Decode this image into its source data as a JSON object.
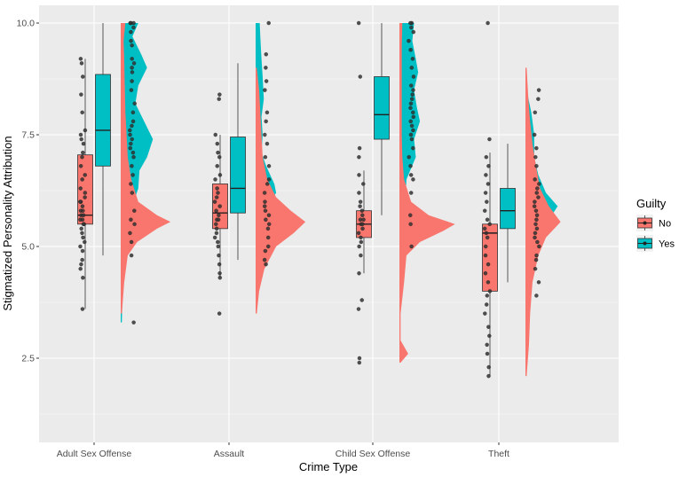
{
  "chart_data": {
    "type": "raincloud",
    "xlabel": "Crime Type",
    "ylabel": "Stigmatized Personality Attribution",
    "ylim": [
      1.0,
      10.3
    ],
    "y_ticks": [
      2.5,
      5.0,
      7.5,
      10.0
    ],
    "y_tick_labels": [
      "2.5",
      "5.0",
      "7.5",
      "10.0"
    ],
    "categories": [
      "Adult Sex Offense",
      "Assault",
      "Child Sex Offense",
      "Theft"
    ],
    "legend": {
      "title": "Guilty",
      "entries": [
        "No",
        "Yes"
      ],
      "placement": "right"
    },
    "colors": {
      "No": "#F8766D",
      "Yes": "#00BFC4",
      "panel": "#EBEBEB",
      "grid": "#FFFFFF",
      "points": "#333333"
    },
    "boxplots": [
      {
        "category": "Adult Sex Offense",
        "group": "No",
        "min": 3.6,
        "q1": 5.5,
        "median": 5.7,
        "q3": 7.05,
        "max": 9.2
      },
      {
        "category": "Adult Sex Offense",
        "group": "Yes",
        "min": 4.8,
        "q1": 6.8,
        "median": 7.6,
        "q3": 8.85,
        "max": 10.0
      },
      {
        "category": "Assault",
        "group": "No",
        "min": 4.3,
        "q1": 5.4,
        "median": 5.75,
        "q3": 6.4,
        "max": 7.5
      },
      {
        "category": "Assault",
        "group": "Yes",
        "min": 4.7,
        "q1": 5.75,
        "median": 6.3,
        "q3": 7.45,
        "max": 9.1
      },
      {
        "category": "Child Sex Offense",
        "group": "No",
        "min": 4.4,
        "q1": 5.2,
        "median": 5.5,
        "q3": 5.8,
        "max": 6.7
      },
      {
        "category": "Child Sex Offense",
        "group": "Yes",
        "min": 5.7,
        "q1": 7.4,
        "median": 7.95,
        "q3": 8.8,
        "max": 10.0
      },
      {
        "category": "Theft",
        "group": "No",
        "min": 2.1,
        "q1": 4.0,
        "median": 5.3,
        "q3": 5.5,
        "max": 7.1
      },
      {
        "category": "Theft",
        "group": "Yes",
        "min": 4.2,
        "q1": 5.4,
        "median": 5.8,
        "q3": 6.3,
        "max": 7.3
      }
    ],
    "densities": [
      {
        "category": "Adult Sex Offense",
        "group": "Yes",
        "profile": [
          [
            3.3,
            0.02
          ],
          [
            4.0,
            0.03
          ],
          [
            4.8,
            0.05
          ],
          [
            5.5,
            0.12
          ],
          [
            6.0,
            0.22
          ],
          [
            6.3,
            0.3
          ],
          [
            6.7,
            0.32
          ],
          [
            7.0,
            0.45
          ],
          [
            7.4,
            0.55
          ],
          [
            7.8,
            0.4
          ],
          [
            8.2,
            0.25
          ],
          [
            8.6,
            0.3
          ],
          [
            9.0,
            0.45
          ],
          [
            9.3,
            0.35
          ],
          [
            9.7,
            0.2
          ],
          [
            10.0,
            0.3
          ]
        ]
      },
      {
        "category": "Adult Sex Offense",
        "group": "No",
        "profile": [
          [
            3.5,
            0.02
          ],
          [
            4.2,
            0.06
          ],
          [
            4.8,
            0.12
          ],
          [
            5.1,
            0.28
          ],
          [
            5.4,
            0.62
          ],
          [
            5.55,
            0.85
          ],
          [
            5.7,
            0.62
          ],
          [
            6.0,
            0.3
          ],
          [
            6.5,
            0.18
          ],
          [
            7.0,
            0.12
          ],
          [
            7.5,
            0.1
          ],
          [
            8.0,
            0.08
          ],
          [
            8.6,
            0.07
          ],
          [
            9.2,
            0.06
          ],
          [
            9.6,
            0.05
          ],
          [
            10.0,
            0.08
          ]
        ]
      },
      {
        "category": "Assault",
        "group": "Yes",
        "profile": [
          [
            5.5,
            0.02
          ],
          [
            5.8,
            0.12
          ],
          [
            6.0,
            0.25
          ],
          [
            6.2,
            0.35
          ],
          [
            6.4,
            0.32
          ],
          [
            6.8,
            0.18
          ],
          [
            7.1,
            0.1
          ],
          [
            7.5,
            0.12
          ],
          [
            7.9,
            0.1
          ],
          [
            8.3,
            0.14
          ],
          [
            8.8,
            0.12
          ],
          [
            9.2,
            0.1
          ],
          [
            9.7,
            0.08
          ],
          [
            10.0,
            0.07
          ]
        ]
      },
      {
        "category": "Assault",
        "group": "No",
        "profile": [
          [
            3.5,
            0.02
          ],
          [
            4.0,
            0.06
          ],
          [
            4.5,
            0.15
          ],
          [
            5.0,
            0.35
          ],
          [
            5.3,
            0.65
          ],
          [
            5.55,
            0.85
          ],
          [
            5.8,
            0.6
          ],
          [
            6.1,
            0.35
          ],
          [
            6.5,
            0.2
          ],
          [
            7.0,
            0.12
          ],
          [
            7.5,
            0.1
          ],
          [
            8.0,
            0.08
          ],
          [
            8.5,
            0.06
          ],
          [
            9.0,
            0.02
          ]
        ]
      },
      {
        "category": "Child Sex Offense",
        "group": "Yes",
        "profile": [
          [
            5.0,
            0.02
          ],
          [
            5.5,
            0.05
          ],
          [
            6.0,
            0.1
          ],
          [
            6.5,
            0.12
          ],
          [
            7.0,
            0.28
          ],
          [
            7.4,
            0.25
          ],
          [
            7.8,
            0.35
          ],
          [
            8.1,
            0.3
          ],
          [
            8.5,
            0.25
          ],
          [
            8.9,
            0.32
          ],
          [
            9.2,
            0.28
          ],
          [
            9.6,
            0.22
          ],
          [
            10.0,
            0.25
          ]
        ]
      },
      {
        "category": "Child Sex Offense",
        "group": "No",
        "profile": [
          [
            2.4,
            0.02
          ],
          [
            2.6,
            0.15
          ],
          [
            2.9,
            0.02
          ],
          [
            3.5,
            0.02
          ],
          [
            4.2,
            0.08
          ],
          [
            4.8,
            0.12
          ],
          [
            5.1,
            0.35
          ],
          [
            5.35,
            0.75
          ],
          [
            5.5,
            0.95
          ],
          [
            5.7,
            0.5
          ],
          [
            6.0,
            0.2
          ],
          [
            6.5,
            0.08
          ],
          [
            7.0,
            0.05
          ],
          [
            7.5,
            0.04
          ],
          [
            8.5,
            0.04
          ],
          [
            9.5,
            0.04
          ],
          [
            10.0,
            0.05
          ]
        ]
      },
      {
        "category": "Theft",
        "group": "Yes",
        "profile": [
          [
            4.6,
            0.02
          ],
          [
            4.9,
            0.1
          ],
          [
            5.2,
            0.2
          ],
          [
            5.6,
            0.4
          ],
          [
            5.9,
            0.55
          ],
          [
            6.2,
            0.35
          ],
          [
            6.6,
            0.22
          ],
          [
            7.0,
            0.15
          ],
          [
            7.5,
            0.15
          ],
          [
            8.0,
            0.1
          ],
          [
            8.5,
            0.02
          ]
        ]
      },
      {
        "category": "Theft",
        "group": "No",
        "profile": [
          [
            2.1,
            0.02
          ],
          [
            2.8,
            0.06
          ],
          [
            3.5,
            0.08
          ],
          [
            4.2,
            0.12
          ],
          [
            4.8,
            0.22
          ],
          [
            5.2,
            0.35
          ],
          [
            5.55,
            0.6
          ],
          [
            5.9,
            0.4
          ],
          [
            6.3,
            0.25
          ],
          [
            6.8,
            0.18
          ],
          [
            7.3,
            0.12
          ],
          [
            7.8,
            0.08
          ],
          [
            8.3,
            0.05
          ],
          [
            9.0,
            0.02
          ]
        ]
      }
    ],
    "points": [
      {
        "category": "Adult Sex Offense",
        "group": "No",
        "values": [
          3.6,
          4.3,
          4.5,
          4.6,
          4.7,
          4.9,
          5.0,
          5.1,
          5.2,
          5.3,
          5.4,
          5.5,
          5.5,
          5.6,
          5.6,
          5.7,
          5.7,
          5.8,
          5.8,
          5.9,
          6.0,
          6.0,
          6.1,
          6.2,
          6.3,
          6.5,
          6.6,
          6.8,
          7.0,
          7.1,
          7.3,
          7.4,
          7.5,
          7.6,
          8.0,
          8.4,
          8.8,
          9.1,
          9.2
        ]
      },
      {
        "category": "Adult Sex Offense",
        "group": "Yes",
        "values": [
          3.3,
          4.8,
          5.1,
          5.3,
          5.5,
          5.6,
          5.8,
          6.2,
          6.4,
          6.6,
          6.8,
          7.0,
          7.1,
          7.2,
          7.3,
          7.4,
          7.5,
          7.6,
          7.7,
          7.8,
          8.0,
          8.2,
          8.5,
          8.7,
          8.9,
          9.0,
          9.1,
          9.2,
          9.5,
          9.6,
          9.8,
          9.9,
          10.0,
          10.0,
          10.0
        ]
      },
      {
        "category": "Assault",
        "group": "No",
        "values": [
          3.5,
          4.3,
          4.4,
          4.6,
          4.8,
          5.0,
          5.1,
          5.2,
          5.3,
          5.4,
          5.5,
          5.6,
          5.6,
          5.7,
          5.8,
          5.9,
          6.0,
          6.1,
          6.2,
          6.3,
          6.5,
          6.6,
          6.8,
          7.0,
          7.1,
          7.3,
          7.5,
          8.3,
          8.4
        ]
      },
      {
        "category": "Assault",
        "group": "Yes",
        "values": [
          4.6,
          4.7,
          4.9,
          5.0,
          5.2,
          5.4,
          5.5,
          5.6,
          5.7,
          5.8,
          5.9,
          6.0,
          6.2,
          6.4,
          6.5,
          6.8,
          7.0,
          7.3,
          7.5,
          7.8,
          8.0,
          8.5,
          8.7,
          9.0,
          9.3,
          10.0
        ]
      },
      {
        "category": "Child Sex Offense",
        "group": "No",
        "values": [
          2.4,
          2.5,
          3.6,
          3.8,
          4.4,
          4.8,
          5.0,
          5.1,
          5.2,
          5.3,
          5.4,
          5.5,
          5.5,
          5.6,
          5.6,
          5.7,
          5.8,
          5.9,
          6.0,
          6.2,
          6.4,
          6.6,
          7.0,
          7.2,
          8.8,
          10.0
        ]
      },
      {
        "category": "Child Sex Offense",
        "group": "Yes",
        "values": [
          5.0,
          5.5,
          5.7,
          6.2,
          6.5,
          6.6,
          6.8,
          7.0,
          7.2,
          7.4,
          7.5,
          7.6,
          7.7,
          7.8,
          7.9,
          8.0,
          8.1,
          8.2,
          8.3,
          8.4,
          8.5,
          8.6,
          8.8,
          9.0,
          9.2,
          9.4,
          9.6,
          9.8,
          9.9,
          10.0,
          10.0
        ]
      },
      {
        "category": "Theft",
        "group": "No",
        "values": [
          2.1,
          2.3,
          2.6,
          2.8,
          3.0,
          3.2,
          3.5,
          3.7,
          3.9,
          4.0,
          4.2,
          4.4,
          4.6,
          4.8,
          5.0,
          5.2,
          5.3,
          5.4,
          5.5,
          5.6,
          5.8,
          6.0,
          6.2,
          6.4,
          6.6,
          6.8,
          7.0,
          7.4,
          10.0
        ]
      },
      {
        "category": "Theft",
        "group": "Yes",
        "values": [
          3.9,
          4.2,
          4.5,
          4.7,
          4.8,
          5.0,
          5.1,
          5.2,
          5.3,
          5.4,
          5.5,
          5.6,
          5.7,
          5.8,
          5.9,
          6.0,
          6.1,
          6.2,
          6.3,
          6.4,
          6.5,
          6.8,
          7.0,
          7.2,
          7.5,
          8.0,
          8.3,
          8.5
        ]
      }
    ]
  }
}
